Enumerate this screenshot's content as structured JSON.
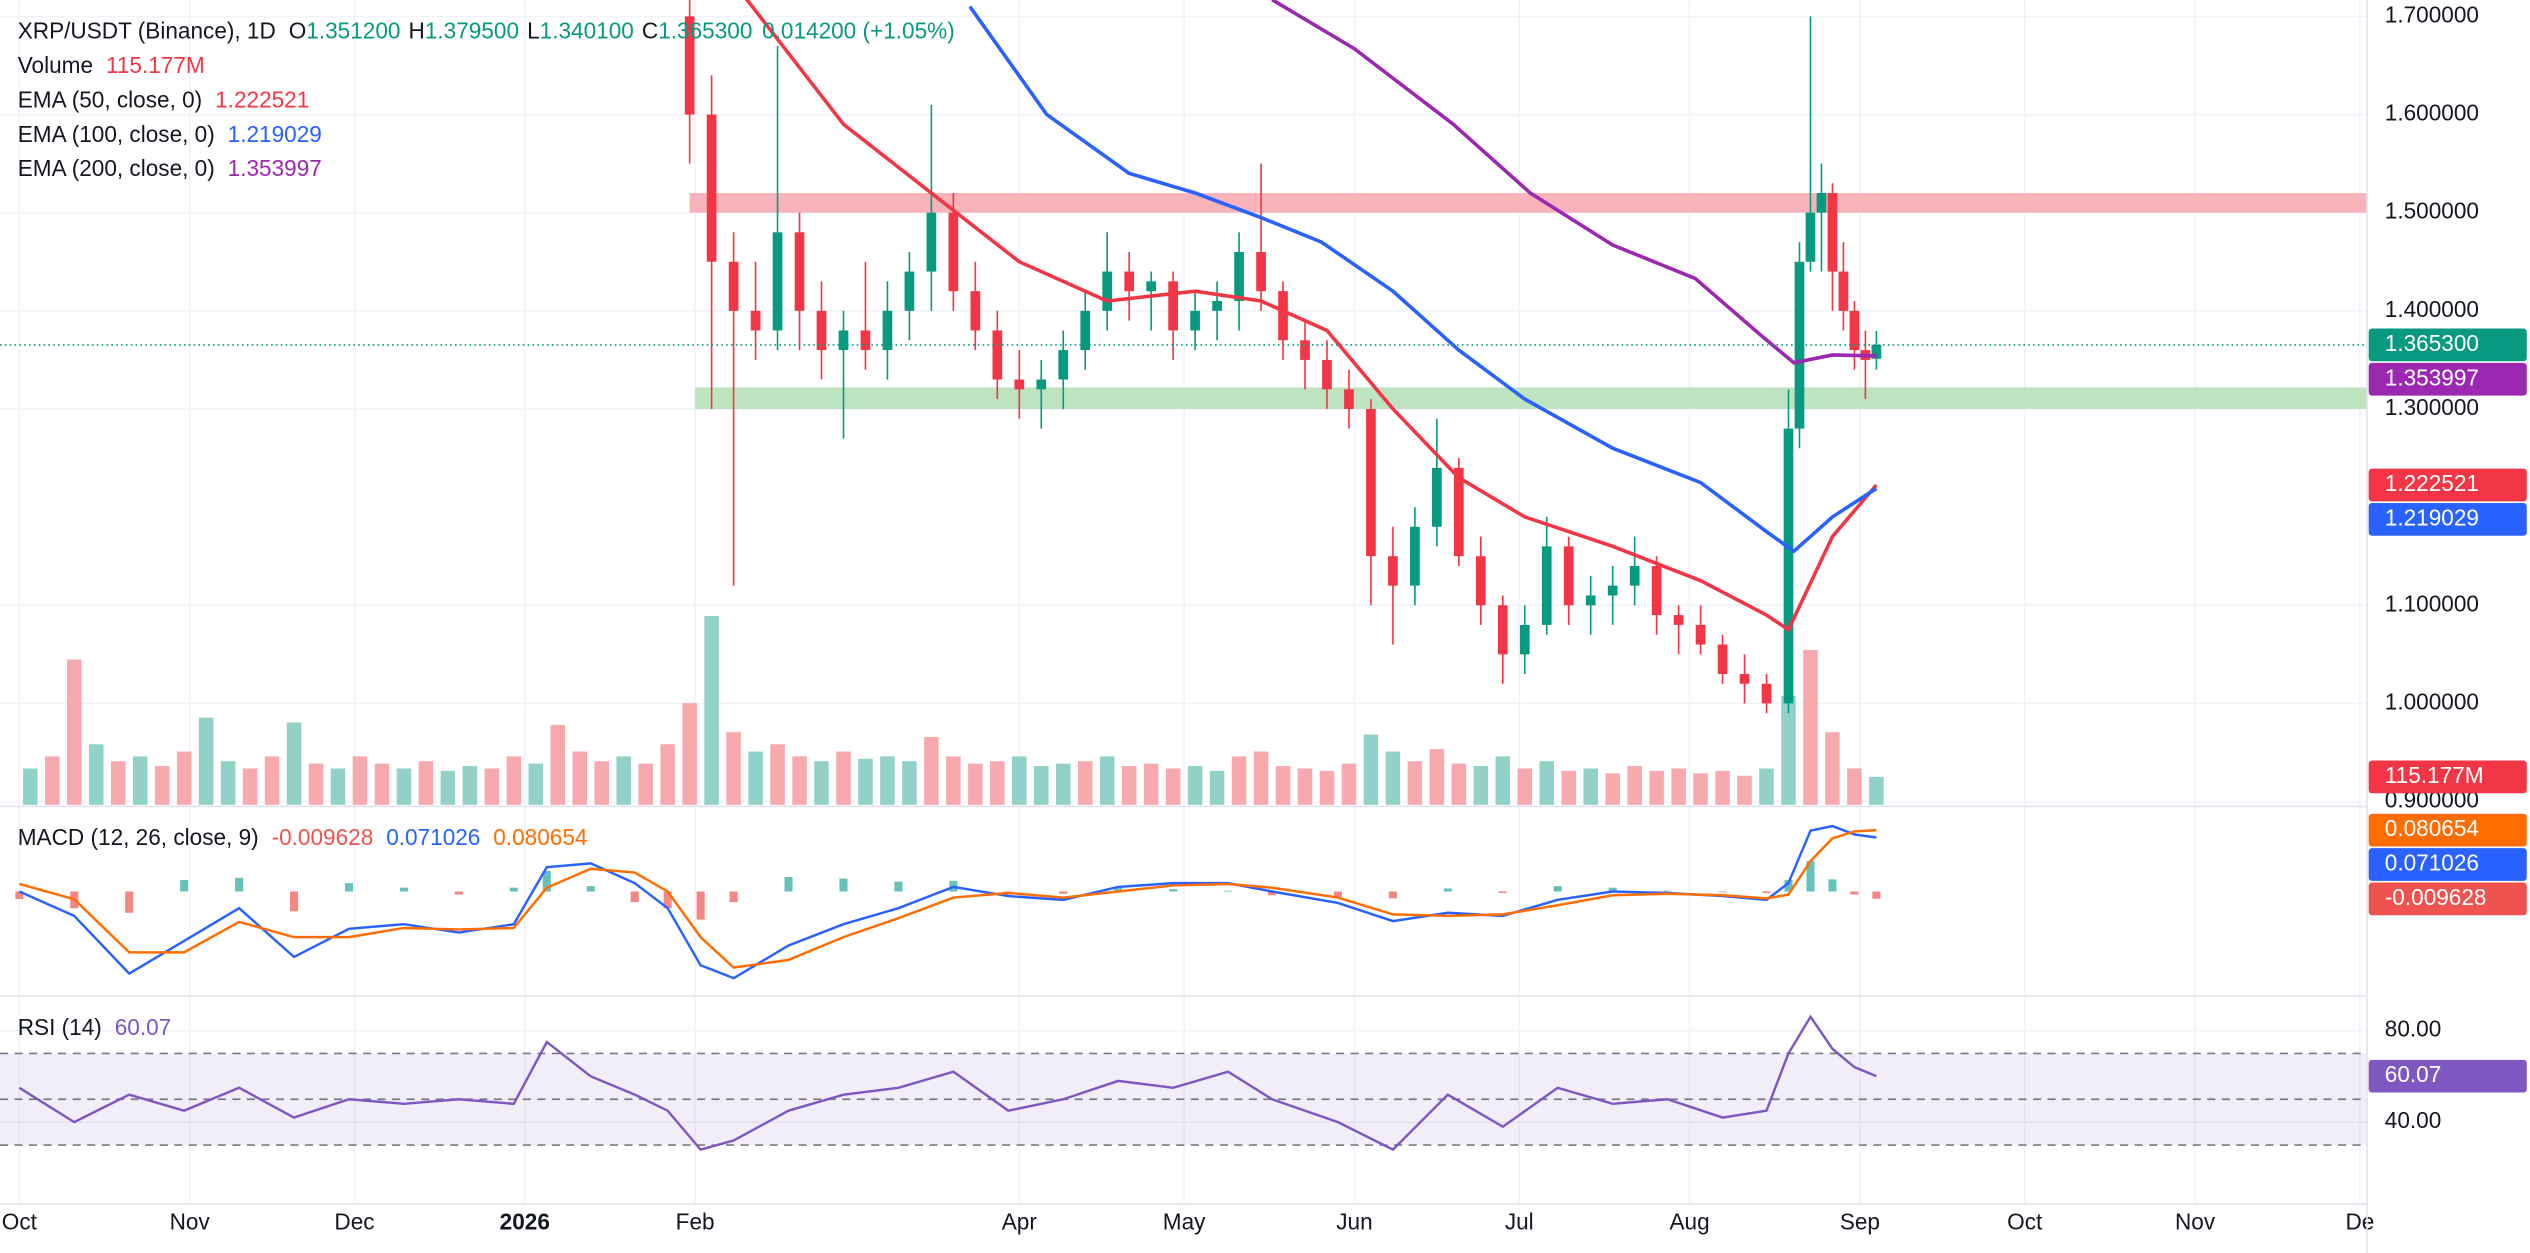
{
  "chart_data": [
    {
      "type": "candlestick",
      "title": "XRP/USDT (Binance), 1D",
      "legend_ohlc": [
        {
          "key": "O",
          "label": "1.351200"
        },
        {
          "key": "H",
          "label": "1.379500"
        },
        {
          "key": "L",
          "label": "1.340100"
        },
        {
          "key": "C",
          "label": "1.365300"
        }
      ],
      "change_label": "0.014200 (+1.05%)",
      "colors": {
        "up": "#089981",
        "down": "#f23645"
      },
      "xlim": [
        -3.52,
        427.3
      ],
      "xticks": [
        {
          "value": 0,
          "label": "Oct"
        },
        {
          "value": 31,
          "label": "Nov"
        },
        {
          "value": 61,
          "label": "Dec"
        },
        {
          "value": 92,
          "label": "2026"
        },
        {
          "value": 123,
          "label": "Feb"
        },
        {
          "value": 182,
          "label": "Apr"
        },
        {
          "value": 212,
          "label": "May"
        },
        {
          "value": 243,
          "label": "Jun"
        },
        {
          "value": 273,
          "label": "Jul"
        },
        {
          "value": 304,
          "label": "Aug"
        },
        {
          "value": 335,
          "label": "Sep"
        },
        {
          "value": 365,
          "label": "Oct"
        },
        {
          "value": 396,
          "label": "Nov"
        },
        {
          "value": 426,
          "label": "De"
        }
      ],
      "ylim": [
        0.8967,
        1.7167
      ],
      "yticks": [
        {
          "value": 1.7,
          "label": "1.700000"
        },
        {
          "value": 1.6,
          "label": "1.600000"
        },
        {
          "value": 1.5,
          "label": "1.500000"
        },
        {
          "value": 1.4,
          "label": "1.400000"
        },
        {
          "value": 1.3,
          "label": "1.300000"
        },
        {
          "value": 1.1,
          "label": "1.100000"
        },
        {
          "value": 1.0,
          "label": "1.000000"
        },
        {
          "value": 0.9,
          "label": "0.900000"
        }
      ],
      "grid": true,
      "zones": [
        {
          "from": 1.5,
          "to": 1.52,
          "start": 122,
          "color": "#f7b3b9"
        },
        {
          "from": 1.3,
          "to": 1.322,
          "start": 123,
          "color": "#bde3c0"
        }
      ],
      "x": [
        122,
        126,
        130,
        134,
        138,
        142,
        146,
        150,
        154,
        158,
        162,
        166,
        170,
        174,
        178,
        182,
        186,
        190,
        194,
        198,
        202,
        206,
        210,
        214,
        218,
        222,
        226,
        230,
        234,
        238,
        242,
        246,
        250,
        254,
        258,
        262,
        266,
        270,
        274,
        278,
        282,
        286,
        290,
        294,
        298,
        302,
        306,
        310,
        314,
        318,
        322,
        324,
        326,
        328,
        330,
        332,
        334,
        336,
        338
      ],
      "open": [
        1.7,
        1.6,
        1.45,
        1.4,
        1.38,
        1.48,
        1.4,
        1.36,
        1.38,
        1.36,
        1.4,
        1.44,
        1.5,
        1.42,
        1.38,
        1.33,
        1.32,
        1.33,
        1.36,
        1.4,
        1.44,
        1.42,
        1.43,
        1.38,
        1.4,
        1.41,
        1.46,
        1.42,
        1.37,
        1.35,
        1.32,
        1.3,
        1.15,
        1.12,
        1.18,
        1.24,
        1.15,
        1.1,
        1.05,
        1.08,
        1.16,
        1.1,
        1.11,
        1.12,
        1.14,
        1.09,
        1.08,
        1.06,
        1.03,
        1.02,
        1.0,
        1.28,
        1.45,
        1.5,
        1.52,
        1.44,
        1.4,
        1.36,
        1.3512
      ],
      "high": [
        1.72,
        1.64,
        1.48,
        1.45,
        1.67,
        1.5,
        1.43,
        1.4,
        1.45,
        1.43,
        1.46,
        1.61,
        1.52,
        1.45,
        1.4,
        1.36,
        1.35,
        1.38,
        1.42,
        1.48,
        1.46,
        1.44,
        1.44,
        1.42,
        1.43,
        1.48,
        1.55,
        1.43,
        1.39,
        1.37,
        1.34,
        1.31,
        1.18,
        1.2,
        1.29,
        1.25,
        1.17,
        1.11,
        1.1,
        1.19,
        1.17,
        1.13,
        1.14,
        1.17,
        1.15,
        1.1,
        1.1,
        1.07,
        1.05,
        1.03,
        1.32,
        1.47,
        1.7,
        1.55,
        1.53,
        1.47,
        1.41,
        1.38,
        1.3795
      ],
      "low": [
        1.55,
        1.3,
        1.12,
        1.35,
        1.36,
        1.36,
        1.33,
        1.27,
        1.34,
        1.33,
        1.37,
        1.4,
        1.4,
        1.36,
        1.31,
        1.29,
        1.28,
        1.3,
        1.34,
        1.38,
        1.39,
        1.38,
        1.35,
        1.36,
        1.37,
        1.38,
        1.4,
        1.35,
        1.32,
        1.3,
        1.28,
        1.1,
        1.06,
        1.1,
        1.16,
        1.14,
        1.08,
        1.02,
        1.03,
        1.07,
        1.08,
        1.07,
        1.08,
        1.1,
        1.07,
        1.05,
        1.05,
        1.02,
        1.0,
        0.99,
        0.99,
        1.26,
        1.44,
        1.44,
        1.4,
        1.38,
        1.34,
        1.31,
        1.3401
      ],
      "close": [
        1.6,
        1.45,
        1.4,
        1.38,
        1.48,
        1.4,
        1.36,
        1.38,
        1.36,
        1.4,
        1.44,
        1.5,
        1.42,
        1.38,
        1.33,
        1.32,
        1.33,
        1.36,
        1.4,
        1.44,
        1.42,
        1.43,
        1.38,
        1.4,
        1.41,
        1.46,
        1.42,
        1.37,
        1.35,
        1.32,
        1.3,
        1.15,
        1.12,
        1.18,
        1.24,
        1.15,
        1.1,
        1.05,
        1.08,
        1.16,
        1.1,
        1.11,
        1.12,
        1.14,
        1.09,
        1.08,
        1.06,
        1.03,
        1.02,
        1.0,
        1.28,
        1.45,
        1.5,
        1.52,
        1.44,
        1.4,
        1.36,
        1.35,
        1.3653
      ],
      "overlays": [
        {
          "name": "EMA (50, close, 0)",
          "color": "#f23645",
          "last_label": "1.222521",
          "x": [
            132,
            150,
            166,
            182,
            198,
            214,
            226,
            238,
            250,
            262,
            274,
            290,
            306,
            318,
            322,
            330,
            338
          ],
          "values": [
            1.72,
            1.59,
            1.52,
            1.45,
            1.41,
            1.42,
            1.41,
            1.38,
            1.3,
            1.23,
            1.19,
            1.16,
            1.125,
            1.09,
            1.075,
            1.17,
            1.2225
          ]
        },
        {
          "name": "EMA (100, close, 0)",
          "color": "#2962ff",
          "last_label": "1.219029",
          "x": [
            173,
            187,
            202,
            214,
            226,
            237,
            250,
            262,
            274,
            290,
            306,
            318,
            323,
            330,
            338
          ],
          "values": [
            1.71,
            1.6,
            1.54,
            1.52,
            1.495,
            1.47,
            1.42,
            1.36,
            1.31,
            1.26,
            1.225,
            1.175,
            1.155,
            1.19,
            1.219
          ]
        },
        {
          "name": "EMA (200, close, 0)",
          "color": "#9c27b0",
          "last_label": "1.353997",
          "x": [
            228,
            243,
            261,
            275,
            290,
            305,
            317,
            323,
            330,
            338
          ],
          "values": [
            1.717,
            1.667,
            1.59,
            1.52,
            1.467,
            1.433,
            1.375,
            1.347,
            1.355,
            1.354
          ]
        }
      ],
      "volume": {
        "name": "Volume",
        "last_label": "115.177M",
        "ylim": [
          0,
          3324
        ],
        "x": [
          2,
          6,
          10,
          14,
          18,
          22,
          26,
          30,
          34,
          38,
          42,
          46,
          50,
          54,
          58,
          62,
          66,
          70,
          74,
          78,
          82,
          86,
          90,
          94,
          98,
          102,
          106,
          110,
          114,
          118,
          122,
          126,
          130,
          134,
          138,
          142,
          146,
          150,
          154,
          158,
          162,
          166,
          170,
          174,
          178,
          182,
          186,
          190,
          194,
          198,
          202,
          206,
          210,
          214,
          218,
          222,
          226,
          230,
          234,
          238,
          242,
          246,
          250,
          254,
          258,
          262,
          266,
          270,
          274,
          278,
          282,
          286,
          290,
          294,
          298,
          302,
          306,
          310,
          314,
          318,
          322,
          326,
          330,
          334,
          338
        ],
        "values": [
          150,
          200,
          600,
          250,
          180,
          200,
          160,
          220,
          360,
          180,
          150,
          200,
          340,
          170,
          150,
          200,
          170,
          150,
          180,
          140,
          160,
          150,
          200,
          170,
          330,
          220,
          180,
          200,
          170,
          250,
          420,
          780,
          300,
          220,
          250,
          200,
          180,
          220,
          190,
          200,
          180,
          280,
          200,
          170,
          180,
          200,
          160,
          170,
          180,
          200,
          160,
          170,
          150,
          160,
          140,
          200,
          220,
          160,
          150,
          140,
          170,
          290,
          220,
          180,
          230,
          170,
          160,
          200,
          150,
          180,
          140,
          150,
          130,
          160,
          140,
          150,
          130,
          140,
          120,
          150,
          450,
          640,
          300,
          150,
          115.177
        ],
        "colors": [
          "#91d1c7",
          "#f7a9ad",
          "#f7a9ad",
          "#91d1c7",
          "#f7a9ad",
          "#91d1c7",
          "#f7a9ad",
          "#f7a9ad",
          "#91d1c7",
          "#91d1c7",
          "#f7a9ad",
          "#f7a9ad",
          "#91d1c7",
          "#f7a9ad",
          "#91d1c7",
          "#f7a9ad",
          "#f7a9ad",
          "#91d1c7",
          "#f7a9ad",
          "#91d1c7",
          "#91d1c7",
          "#f7a9ad",
          "#f7a9ad",
          "#91d1c7",
          "#f7a9ad",
          "#f7a9ad",
          "#f7a9ad",
          "#91d1c7",
          "#f7a9ad",
          "#f7a9ad",
          "#f7a9ad",
          "#91d1c7",
          "#f7a9ad",
          "#91d1c7",
          "#f7a9ad",
          "#f7a9ad",
          "#91d1c7",
          "#f7a9ad",
          "#91d1c7",
          "#91d1c7",
          "#91d1c7",
          "#f7a9ad",
          "#f7a9ad",
          "#f7a9ad",
          "#f7a9ad",
          "#91d1c7",
          "#91d1c7",
          "#91d1c7",
          "#f7a9ad",
          "#91d1c7",
          "#f7a9ad",
          "#f7a9ad",
          "#f7a9ad",
          "#91d1c7",
          "#91d1c7",
          "#f7a9ad",
          "#f7a9ad",
          "#f7a9ad",
          "#f7a9ad",
          "#f7a9ad",
          "#f7a9ad",
          "#91d1c7",
          "#91d1c7",
          "#f7a9ad",
          "#f7a9ad",
          "#f7a9ad",
          "#91d1c7",
          "#91d1c7",
          "#f7a9ad",
          "#91d1c7",
          "#f7a9ad",
          "#91d1c7",
          "#f7a9ad",
          "#f7a9ad",
          "#f7a9ad",
          "#f7a9ad",
          "#f7a9ad",
          "#f7a9ad",
          "#f7a9ad",
          "#91d1c7",
          "#91d1c7",
          "#f7a9ad",
          "#f7a9ad",
          "#f7a9ad",
          "#91d1c7"
        ]
      }
    },
    {
      "type": "macd",
      "title": "MACD (12, 26, close, 9)",
      "ylim": [
        -0.1355,
        0.1097
      ],
      "x": [
        0,
        10,
        20,
        30,
        40,
        50,
        60,
        70,
        80,
        90,
        96,
        104,
        112,
        118,
        124,
        130,
        140,
        150,
        160,
        170,
        180,
        190,
        200,
        210,
        220,
        228,
        240,
        250,
        260,
        270,
        280,
        290,
        300,
        310,
        318,
        322,
        326,
        330,
        334,
        338
      ],
      "histogram": {
        "last_label": "-0.009628",
        "colors": {
          "up": "#26a69a",
          "down": "#ef5350"
        },
        "values": [
          -0.01,
          -0.022,
          -0.028,
          0.015,
          0.018,
          -0.026,
          0.011,
          0.005,
          -0.004,
          0.005,
          0.027,
          0.007,
          -0.014,
          -0.022,
          -0.037,
          -0.014,
          0.019,
          0.017,
          0.013,
          0.014,
          -0.004,
          -0.003,
          0.006,
          0.003,
          0.001,
          -0.005,
          -0.007,
          -0.009,
          0.004,
          -0.002,
          0.007,
          0.005,
          0.001,
          -0.001,
          -0.002,
          0.015,
          0.04,
          0.016,
          -0.004,
          -0.009628
        ]
      },
      "series": [
        {
          "color": "#2962ff",
          "last_label": "0.071026",
          "values": [
            0.0,
            -0.032,
            -0.108,
            -0.065,
            -0.022,
            -0.086,
            -0.049,
            -0.043,
            -0.054,
            -0.043,
            0.032,
            0.037,
            0.011,
            -0.022,
            -0.097,
            -0.114,
            -0.071,
            -0.043,
            -0.022,
            0.006,
            -0.006,
            -0.011,
            0.006,
            0.011,
            0.011,
            0.0,
            -0.015,
            -0.039,
            -0.028,
            -0.032,
            -0.011,
            0.0,
            -0.002,
            -0.006,
            -0.011,
            0.011,
            0.08,
            0.086,
            0.075,
            0.071026
          ]
        },
        {
          "color": "#ff6d00",
          "last_label": "0.080654",
          "values": [
            0.01,
            -0.01,
            -0.08,
            -0.08,
            -0.04,
            -0.06,
            -0.06,
            -0.048,
            -0.05,
            -0.048,
            0.005,
            0.03,
            0.025,
            0.0,
            -0.06,
            -0.1,
            -0.09,
            -0.06,
            -0.035,
            -0.008,
            -0.002,
            -0.008,
            0.0,
            0.008,
            0.01,
            0.005,
            -0.008,
            -0.03,
            -0.032,
            -0.03,
            -0.018,
            -0.005,
            -0.003,
            -0.005,
            -0.009,
            -0.004,
            0.04,
            0.07,
            0.079,
            0.080654
          ]
        }
      ]
    },
    {
      "type": "rsi",
      "title": "RSI (14)",
      "color": "#7e57c2",
      "last_label": "60.07",
      "ylim": [
        5,
        94.3
      ],
      "yticks": [
        {
          "value": 80,
          "label": "80.00"
        },
        {
          "value": 40,
          "label": "40.00"
        }
      ],
      "levels": [
        70,
        50,
        30
      ],
      "x": [
        0,
        10,
        20,
        30,
        40,
        50,
        60,
        70,
        80,
        90,
        96,
        104,
        112,
        118,
        124,
        130,
        140,
        150,
        160,
        170,
        180,
        190,
        200,
        210,
        220,
        228,
        240,
        250,
        260,
        270,
        280,
        290,
        300,
        310,
        318,
        322,
        326,
        330,
        334,
        338
      ],
      "values": [
        55,
        40,
        52,
        45,
        55,
        42,
        50,
        48,
        50,
        48,
        75,
        60,
        52,
        45,
        28,
        32,
        45,
        52,
        55,
        62,
        45,
        50,
        58,
        55,
        62,
        50,
        40,
        28,
        52,
        38,
        55,
        48,
        50,
        42,
        45,
        70,
        86,
        72,
        64,
        60.07
      ]
    }
  ]
}
